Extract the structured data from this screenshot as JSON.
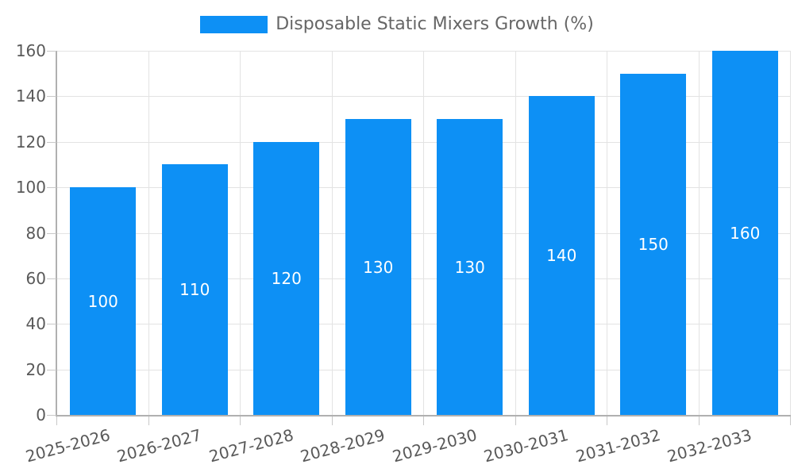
{
  "chart_data": {
    "type": "bar",
    "title": "Disposable Static Mixers Growth (%)",
    "categories": [
      "2025-2026",
      "2026-2027",
      "2027-2028",
      "2028-2029",
      "2029-2030",
      "2030-2031",
      "2031-2032",
      "2032-2033"
    ],
    "values": [
      100,
      110,
      120,
      130,
      130,
      140,
      150,
      160
    ],
    "xlabel": "",
    "ylabel": "",
    "ylim": [
      0,
      160
    ],
    "ytick_step": 20,
    "yticks": [
      "0",
      "20",
      "40",
      "60",
      "80",
      "100",
      "120",
      "140",
      "160"
    ],
    "grid": true,
    "legend_position": "top-center",
    "x_label_rotation_deg": -15,
    "colors": {
      "bar": "#0D90F5",
      "bar_value_text": "#ffffff",
      "axis_text": "#595959",
      "legend_text": "#666666",
      "gridline": "#e3e3e3",
      "axis_line": "#b0b0b0",
      "tick_mark": "#c8c8c8",
      "background": "#ffffff"
    }
  }
}
